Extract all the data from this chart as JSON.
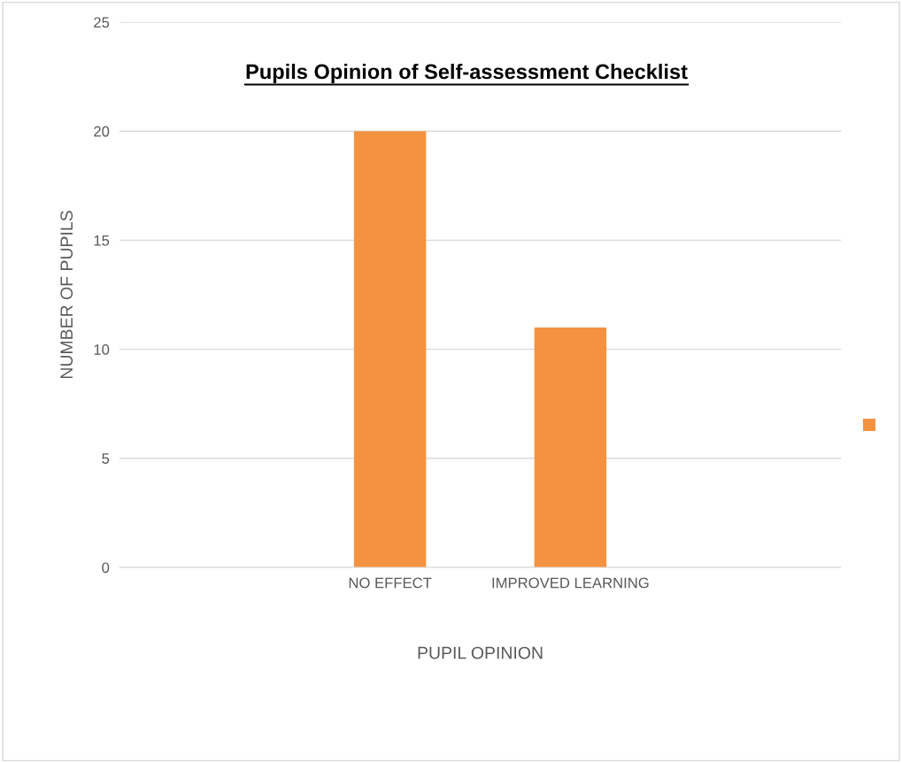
{
  "chart_data": {
    "type": "bar",
    "title": "Pupils Opinion of Self-assessment Checklist",
    "xlabel": "PUPIL OPINION",
    "ylabel": "NUMBER OF PUPILS",
    "categories": [
      null,
      "NO EFFECT",
      "IMPROVED LEARNING",
      null
    ],
    "series": [
      {
        "color": "#f39341",
        "values": [
          null,
          20,
          11,
          null
        ]
      }
    ],
    "ylim": [
      0,
      25
    ],
    "yticks": [
      0,
      5,
      10,
      15,
      20,
      25
    ],
    "grid": "y"
  }
}
